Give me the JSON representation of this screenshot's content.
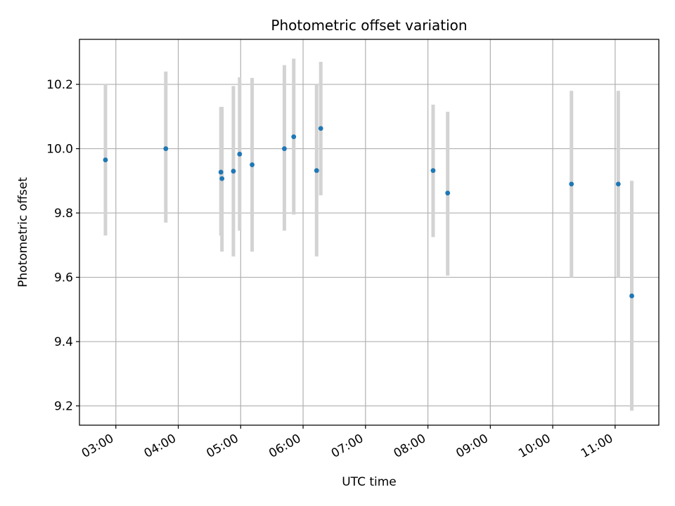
{
  "chart_data": {
    "type": "scatter",
    "title": "Photometric offset variation",
    "xlabel": "UTC time",
    "ylabel": "Photometric offset",
    "x_tick_labels": [
      "03:00",
      "04:00",
      "05:00",
      "06:00",
      "07:00",
      "08:00",
      "09:00",
      "10:00",
      "11:00"
    ],
    "x_ticks": [
      "03:00",
      "04:00",
      "05:00",
      "06:00",
      "07:00",
      "08:00",
      "09:00",
      "10:00",
      "11:00"
    ],
    "y_ticks": [
      9.2,
      9.4,
      9.6,
      9.8,
      10.0,
      10.2
    ],
    "y_tick_labels": [
      "9.2",
      "9.4",
      "9.6",
      "9.8",
      "10.0",
      "10.2"
    ],
    "xlim": [
      "02:25",
      "11:42"
    ],
    "ylim": [
      9.14,
      10.34
    ],
    "grid": true,
    "marker_color": "#1f77b4",
    "errorbar_color": "#d3d3d3",
    "points": [
      {
        "x": "02:50",
        "y": 9.965,
        "yerr_low": 9.73,
        "yerr_high": 10.2
      },
      {
        "x": "03:48",
        "y": 10.0,
        "yerr_low": 9.77,
        "yerr_high": 10.24
      },
      {
        "x": "04:41",
        "y": 9.927,
        "yerr_low": 9.73,
        "yerr_high": 10.13
      },
      {
        "x": "04:42",
        "y": 9.907,
        "yerr_low": 9.68,
        "yerr_high": 10.13
      },
      {
        "x": "04:53",
        "y": 9.93,
        "yerr_low": 9.665,
        "yerr_high": 10.195
      },
      {
        "x": "04:59",
        "y": 9.983,
        "yerr_low": 9.745,
        "yerr_high": 10.222
      },
      {
        "x": "05:11",
        "y": 9.95,
        "yerr_low": 9.68,
        "yerr_high": 10.22
      },
      {
        "x": "05:42",
        "y": 10.0,
        "yerr_low": 9.745,
        "yerr_high": 10.26
      },
      {
        "x": "05:51",
        "y": 10.037,
        "yerr_low": 9.795,
        "yerr_high": 10.28
      },
      {
        "x": "06:13",
        "y": 9.932,
        "yerr_low": 9.665,
        "yerr_high": 10.2
      },
      {
        "x": "06:17",
        "y": 10.063,
        "yerr_low": 9.855,
        "yerr_high": 10.27
      },
      {
        "x": "08:05",
        "y": 9.932,
        "yerr_low": 9.725,
        "yerr_high": 10.137
      },
      {
        "x": "08:19",
        "y": 9.862,
        "yerr_low": 9.605,
        "yerr_high": 10.115
      },
      {
        "x": "10:18",
        "y": 9.89,
        "yerr_low": 9.6,
        "yerr_high": 10.18
      },
      {
        "x": "11:03",
        "y": 9.89,
        "yerr_low": 9.6,
        "yerr_high": 10.18
      },
      {
        "x": "11:16",
        "y": 9.542,
        "yerr_low": 9.185,
        "yerr_high": 9.9
      }
    ]
  }
}
